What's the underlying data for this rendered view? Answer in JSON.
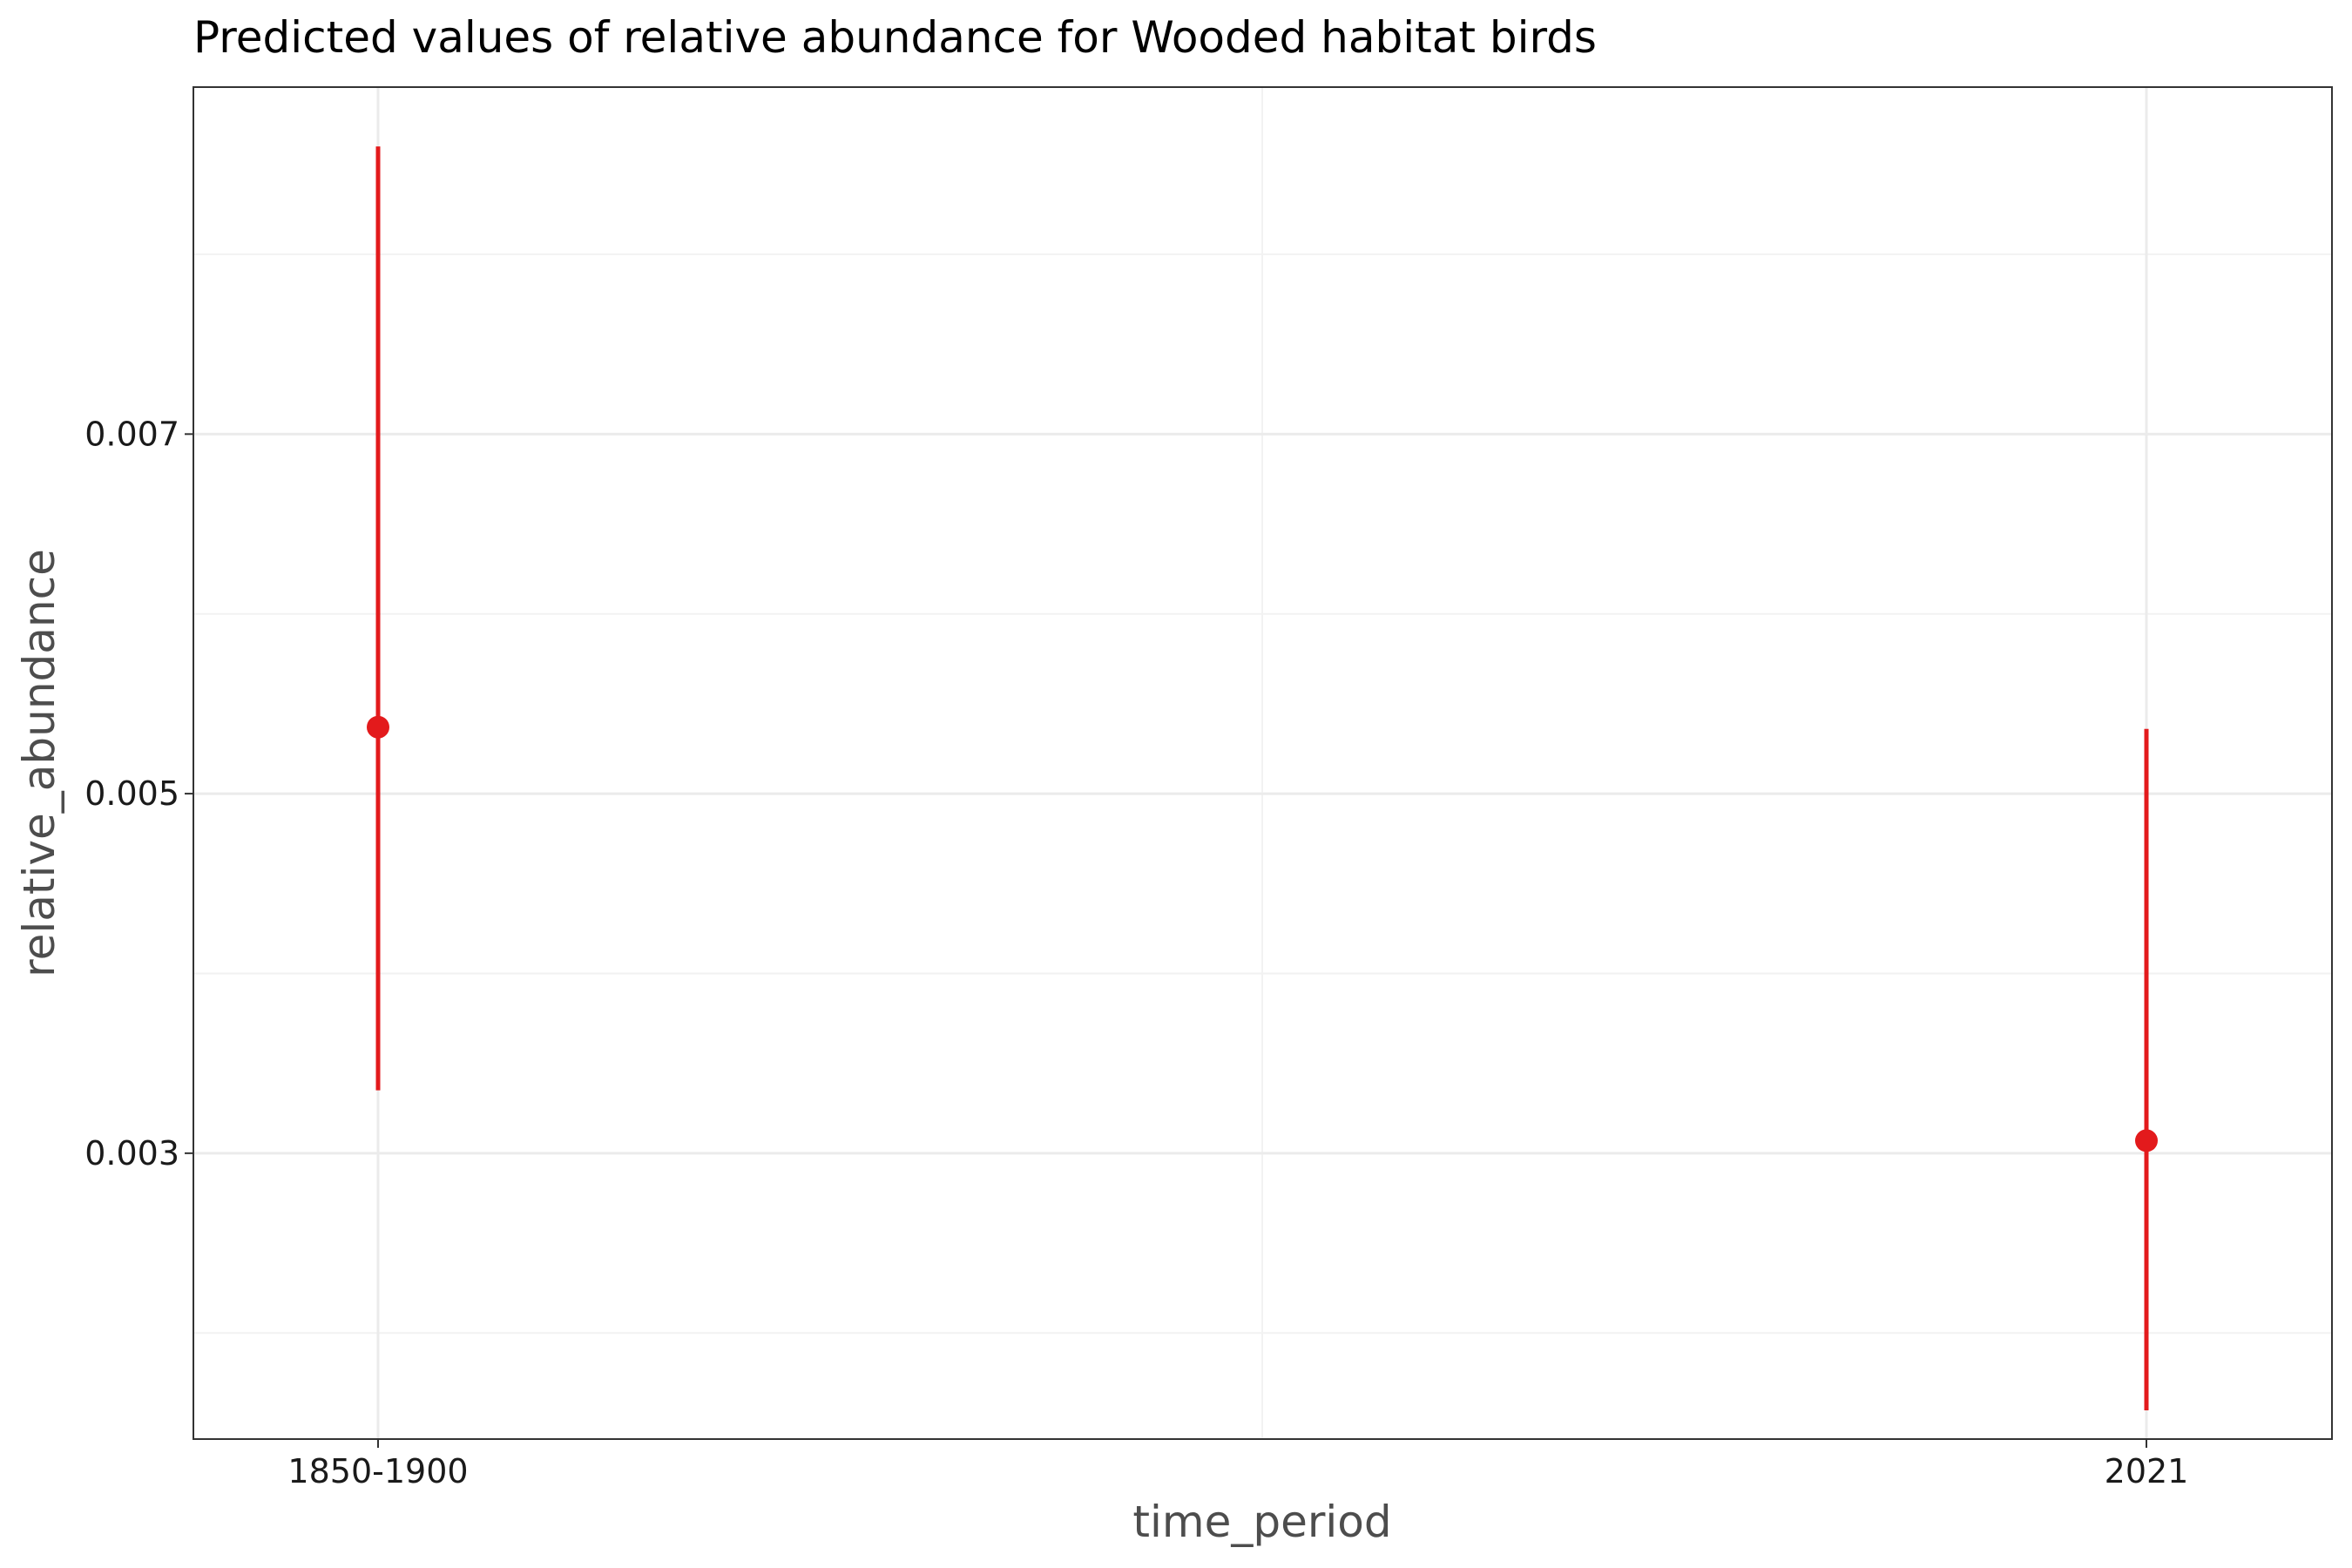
{
  "chart_data": {
    "type": "scatter",
    "title": "Predicted values of relative abundance for Wooded habitat birds",
    "xlabel": "time_period",
    "ylabel": "relative_abundance",
    "categories": [
      "1850-1900",
      "2021"
    ],
    "ylim": [
      0.00141,
      0.00893
    ],
    "y_ticks": [
      "0.003",
      "0.005",
      "0.007"
    ],
    "y_tick_values": [
      0.003,
      0.005,
      0.007
    ],
    "y_minor_values": [
      0.002,
      0.004,
      0.006,
      0.008
    ],
    "grid": true,
    "series": [
      {
        "values": [
          0.00537,
          0.00307
        ],
        "lower": [
          0.00335,
          0.00157
        ],
        "upper": [
          0.0086,
          0.00536
        ]
      }
    ],
    "colors": {
      "point": "#e31a1c",
      "grid": "#ebebeb",
      "border": "#333333"
    }
  }
}
